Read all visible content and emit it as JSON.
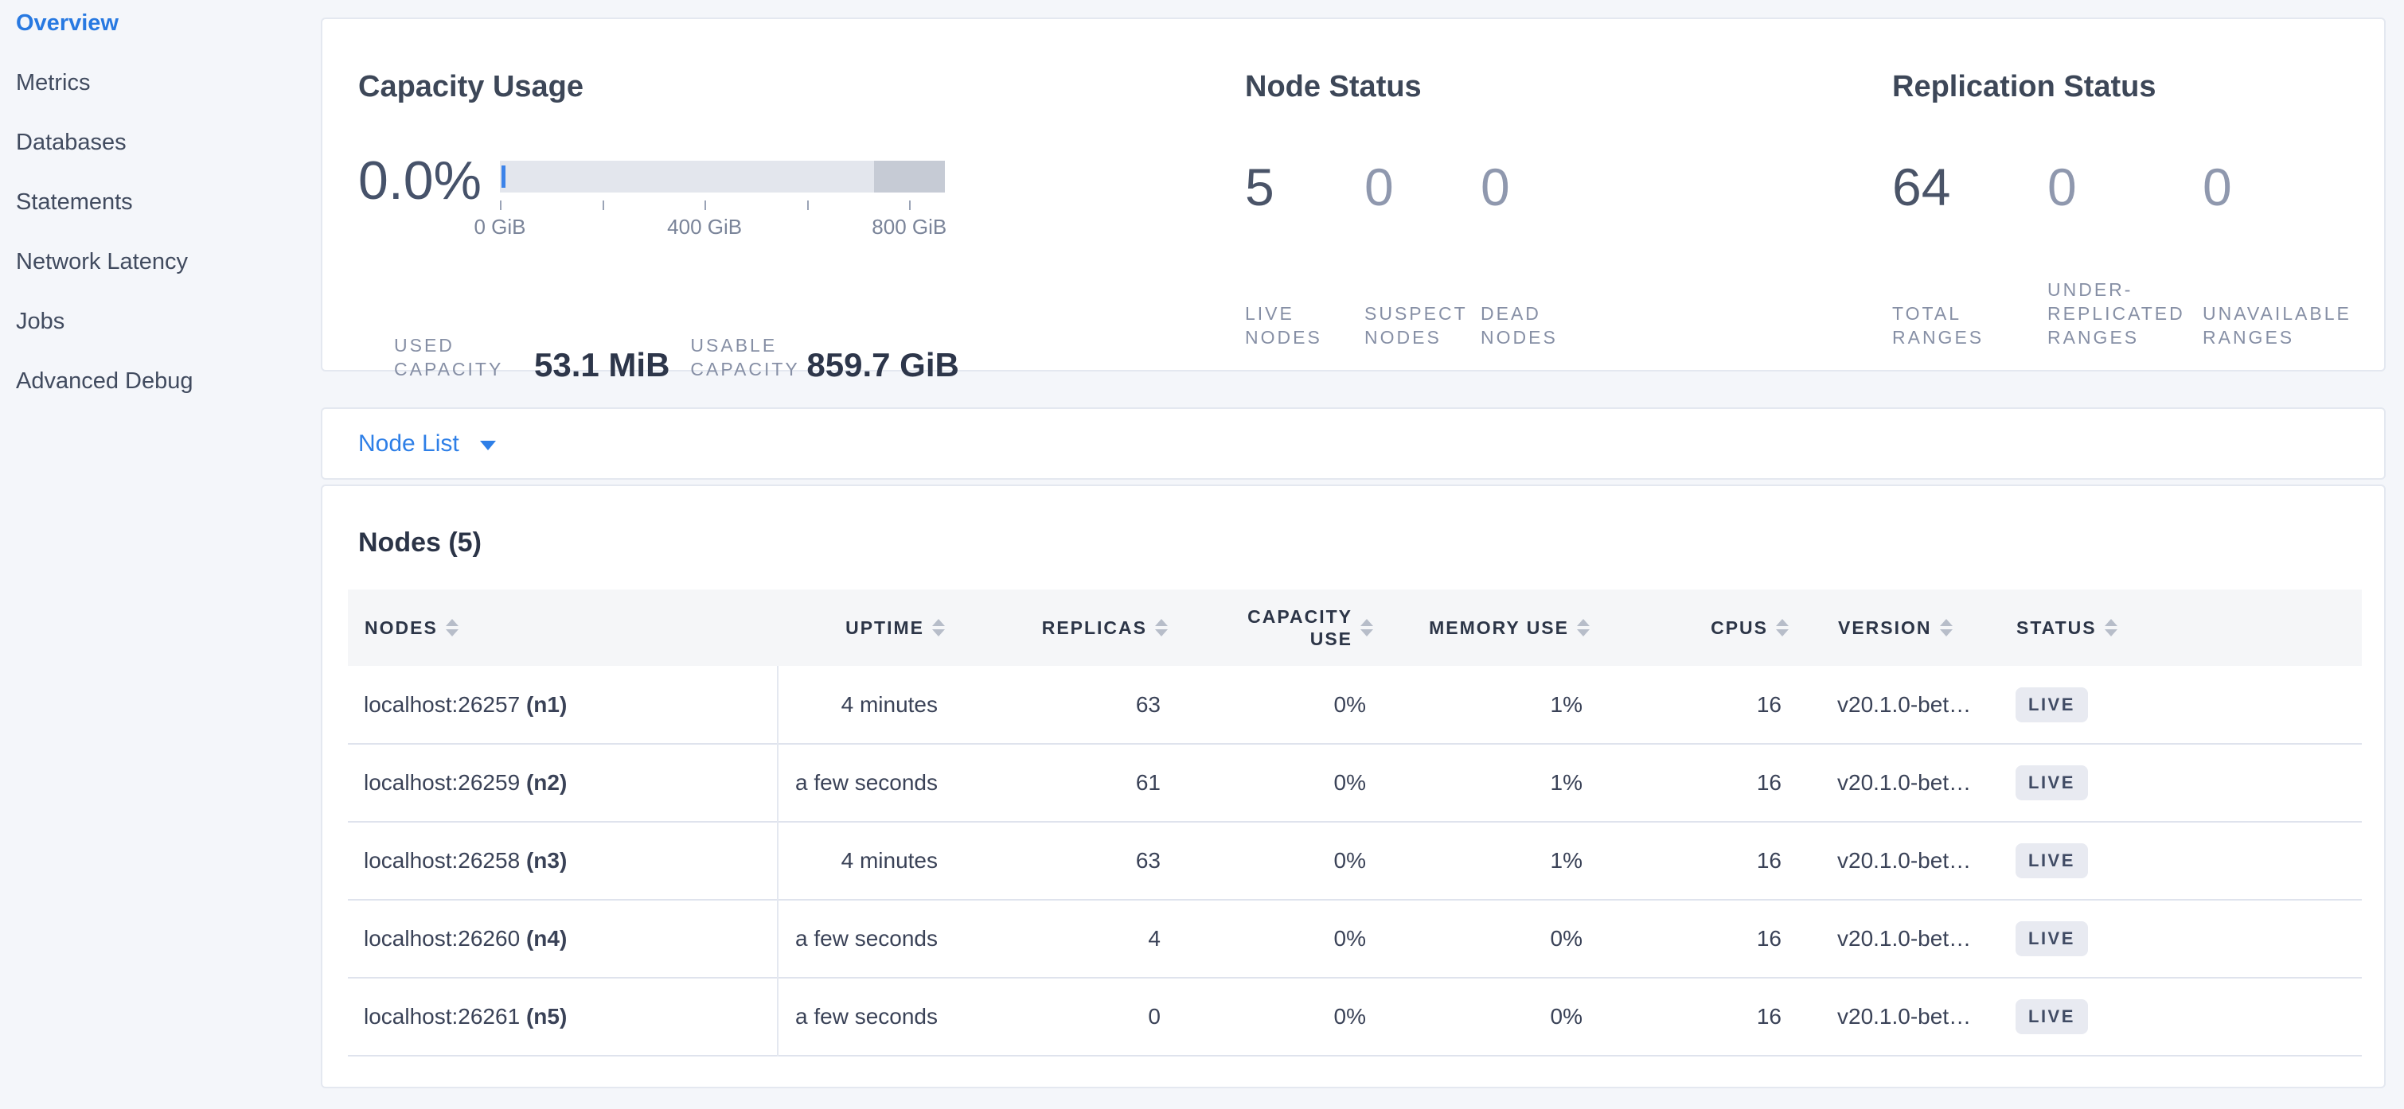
{
  "colors": {
    "accent": "#2879e1",
    "link": "#2e7fe7",
    "page-bg": "#f4f6fa",
    "card-border": "#e4e8f0",
    "divider": "#dfe3ed",
    "muted": "#868fa5",
    "zero-num": "#8f98ae",
    "num": "#4a5468",
    "title": "#3d4758",
    "heading": "#2b3447",
    "value": "#2d364a",
    "row-text": "#3a4257",
    "th-text": "#2c3547",
    "badge-bg": "#e8eaf1",
    "badge-text": "#404b64",
    "bar-track": "#e3e6ed",
    "bar-dark": "#c6cbd5",
    "bar-used": "#3c83e9",
    "tick": "#9aa3b6",
    "tick-label": "#7a8499",
    "header-bg": "#f5f6f8",
    "sidebar-text": "#414b5f"
  },
  "sidebar": {
    "items": [
      {
        "label": "Overview",
        "active": true
      },
      {
        "label": "Metrics",
        "active": false
      },
      {
        "label": "Databases",
        "active": false
      },
      {
        "label": "Statements",
        "active": false
      },
      {
        "label": "Network Latency",
        "active": false
      },
      {
        "label": "Jobs",
        "active": false
      },
      {
        "label": "Advanced Debug",
        "active": false
      }
    ]
  },
  "cards": {
    "capacity": {
      "title": "Capacity Usage",
      "percent": "0.0%",
      "bar": {
        "used_fraction_pct": 0.0,
        "dark_segment_from_pct": 84.1,
        "dark_segment_to_pct": 100
      },
      "axis_ticks": [
        {
          "pos": 0,
          "label": "0 GiB"
        },
        {
          "pos": 23
        },
        {
          "pos": 46,
          "label": "400 GiB"
        },
        {
          "pos": 69
        },
        {
          "pos": 92,
          "label": "800 GiB"
        }
      ],
      "stats": [
        {
          "label": "USED CAPACITY",
          "value": "53.1 MiB"
        },
        {
          "label": "USABLE CAPACITY",
          "value": "859.7 GiB"
        }
      ]
    },
    "node_status": {
      "title": "Node Status",
      "stats": [
        {
          "value": "5",
          "label": "LIVE NODES",
          "primary": true
        },
        {
          "value": "0",
          "label": "SUSPECT NODES",
          "primary": false
        },
        {
          "value": "0",
          "label": "DEAD NODES",
          "primary": false
        }
      ]
    },
    "replication": {
      "title": "Replication Status",
      "stats": [
        {
          "value": "64",
          "label": "TOTAL RANGES",
          "primary": true
        },
        {
          "value": "0",
          "label": "UNDER-REPLICATED RANGES",
          "primary": false
        },
        {
          "value": "0",
          "label": "UNAVAILABLE RANGES",
          "primary": false
        }
      ]
    },
    "node_list": {
      "label": "Node List"
    },
    "nodes_table": {
      "title": "Nodes (5)",
      "columns": [
        {
          "key": "nodes",
          "label": "NODES",
          "align": "left"
        },
        {
          "key": "uptime",
          "label": "UPTIME",
          "align": "right"
        },
        {
          "key": "replicas",
          "label": "REPLICAS",
          "align": "right"
        },
        {
          "key": "capacity",
          "label": "CAPACITY USE",
          "align": "right"
        },
        {
          "key": "memory",
          "label": "MEMORY USE",
          "align": "right"
        },
        {
          "key": "cpus",
          "label": "CPUS",
          "align": "right"
        },
        {
          "key": "version",
          "label": "VERSION",
          "align": "left"
        },
        {
          "key": "status",
          "label": "STATUS",
          "align": "left"
        }
      ],
      "rows": [
        {
          "nodes": "localhost:26257",
          "id": "(n1)",
          "uptime": "4 minutes",
          "replicas": "63",
          "capacity": "0%",
          "memory": "1%",
          "cpus": "16",
          "version": "v20.1.0-bet…",
          "status": "LIVE"
        },
        {
          "nodes": "localhost:26259",
          "id": "(n2)",
          "uptime": "a few seconds",
          "replicas": "61",
          "capacity": "0%",
          "memory": "1%",
          "cpus": "16",
          "version": "v20.1.0-bet…",
          "status": "LIVE"
        },
        {
          "nodes": "localhost:26258",
          "id": "(n3)",
          "uptime": "4 minutes",
          "replicas": "63",
          "capacity": "0%",
          "memory": "1%",
          "cpus": "16",
          "version": "v20.1.0-bet…",
          "status": "LIVE"
        },
        {
          "nodes": "localhost:26260",
          "id": "(n4)",
          "uptime": "a few seconds",
          "replicas": "4",
          "capacity": "0%",
          "memory": "0%",
          "cpus": "16",
          "version": "v20.1.0-bet…",
          "status": "LIVE"
        },
        {
          "nodes": "localhost:26261",
          "id": "(n5)",
          "uptime": "a few seconds",
          "replicas": "0",
          "capacity": "0%",
          "memory": "0%",
          "cpus": "16",
          "version": "v20.1.0-bet…",
          "status": "LIVE"
        }
      ]
    }
  }
}
